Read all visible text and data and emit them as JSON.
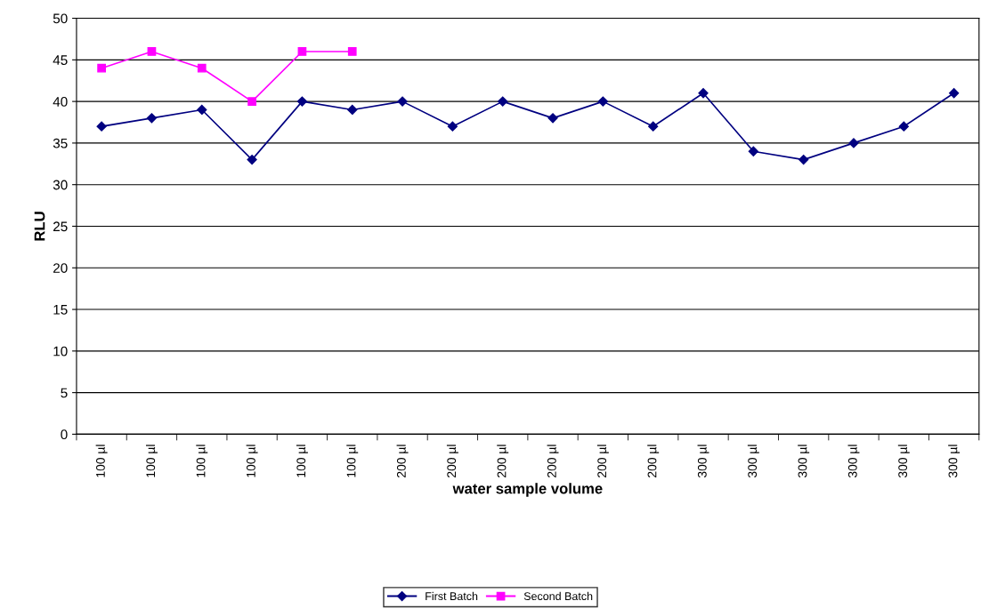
{
  "chart_data": {
    "type": "line",
    "xlabel": "water sample volume",
    "ylabel": "RLU",
    "categories": [
      "100 µl",
      "100 µl",
      "100 µl",
      "100 µl",
      "100 µl",
      "100 µl",
      "200 µl",
      "200 µl",
      "200 µl",
      "200 µl",
      "200 µl",
      "200 µl",
      "300 µl",
      "300 µl",
      "300 µl",
      "300 µl",
      "300 µl",
      "300 µl"
    ],
    "series": [
      {
        "name": "First Batch",
        "color": "#000080",
        "marker": "diamond",
        "values": [
          37,
          38,
          39,
          33,
          40,
          39,
          40,
          37,
          40,
          38,
          40,
          37,
          41,
          34,
          33,
          35,
          37,
          41
        ]
      },
      {
        "name": "Second Batch",
        "color": "#ff00ff",
        "marker": "square",
        "values": [
          44,
          46,
          44,
          40,
          46,
          46,
          null,
          null,
          null,
          null,
          null,
          null,
          null,
          null,
          null,
          null,
          null,
          null
        ]
      }
    ],
    "ylim": [
      0,
      50
    ],
    "yticks": [
      0,
      5,
      10,
      15,
      20,
      25,
      30,
      35,
      40,
      45,
      50
    ],
    "grid": "y",
    "legend": "bottom",
    "line_style": "solid"
  }
}
